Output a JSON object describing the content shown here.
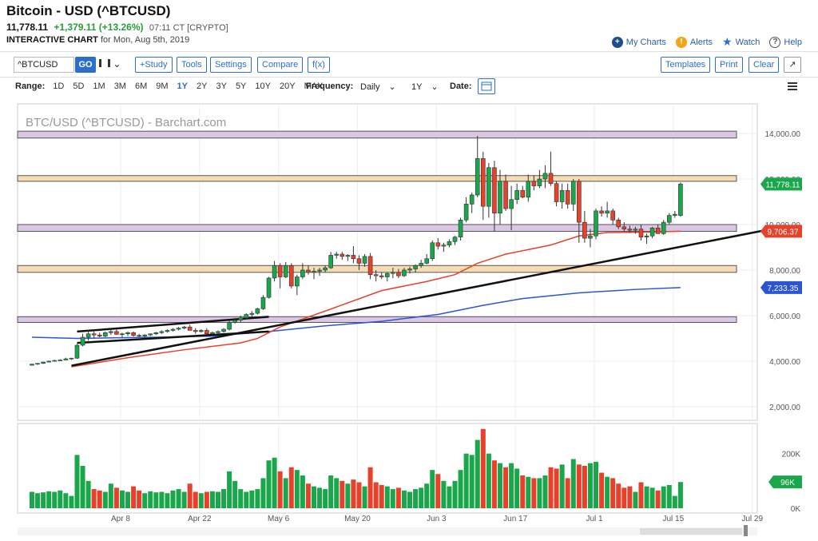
{
  "header": {
    "title": "Bitcoin - USD (^BTCUSD)",
    "last": "11,778.11",
    "change": "+1,379.11 (+13.26%)",
    "time": "07:11 CT [CRYPTO]",
    "chart_kind": "INTERACTIVE CHART",
    "date_text": "for Mon, Aug 5th, 2019"
  },
  "links": {
    "my_charts": "My Charts",
    "alerts": "Alerts",
    "watch": "Watch",
    "help": "Help"
  },
  "toolbar": {
    "symbol": "^BTCUSD",
    "go": "GO",
    "study": "+Study",
    "tools": "Tools",
    "settings": "Settings",
    "compare": "Compare",
    "fx": "f(x)",
    "templates": "Templates",
    "print": "Print",
    "clear": "Clear",
    "expand": "↗"
  },
  "range": {
    "label": "Range:",
    "options": [
      "1D",
      "5D",
      "1M",
      "3M",
      "6M",
      "9M",
      "1Y",
      "2Y",
      "3Y",
      "5Y",
      "10Y",
      "20Y",
      "MAX"
    ],
    "active": "1Y",
    "frequency_label": "Frequency:",
    "frequency_value": "Daily",
    "period_value": "1Y",
    "date_label": "Date:"
  },
  "chart_data": {
    "type": "candlestick",
    "title": "BTC/USD (^BTCUSD) - Barchart.com",
    "price_axis": {
      "ticks": [
        2000,
        4000,
        6000,
        8000,
        10000,
        12000,
        14000
      ],
      "tick_labels": [
        "2,000.00",
        "4,000.00",
        "6,000.00",
        "8,000.00",
        "10,000.00",
        "12,000.00",
        "14,000.00"
      ],
      "range": [
        1400,
        15300
      ]
    },
    "volume_axis": {
      "tick_labels": [
        "200K",
        "0K"
      ],
      "ticks": [
        200000,
        0
      ],
      "range": [
        0,
        310000
      ]
    },
    "x_labels": [
      "Apr 8",
      "Apr 22",
      "May 6",
      "May 20",
      "Jun 3",
      "Jun 17",
      "Jul 1",
      "Jul 15",
      "Jul 29"
    ],
    "x_label_index": [
      4,
      18,
      32,
      46,
      60,
      74,
      88,
      102,
      116
    ],
    "badges": {
      "last_price": "11,778.11",
      "ma_fast": "9,706.37",
      "ma_slow": "7,233.35",
      "volume": "96K"
    },
    "colors": {
      "up": "#1aa64a",
      "down": "#e8412b",
      "ma_fast": "#e8412b",
      "ma_slow": "#2b55d6",
      "support_band_purple": "#dcc6e6",
      "support_band_orange": "#f5dcb3",
      "trendline": "#111111"
    },
    "zones": [
      {
        "low": 13800,
        "high": 14100,
        "color": "purple"
      },
      {
        "low": 11900,
        "high": 12150,
        "color": "orange"
      },
      {
        "low": 9700,
        "high": 10000,
        "color": "purple"
      },
      {
        "low": 7900,
        "high": 8200,
        "color": "orange"
      },
      {
        "low": 5700,
        "high": 5950,
        "color": "purple"
      }
    ],
    "trendlines": [
      {
        "from": [
          -5,
          3800
        ],
        "to": [
          118,
          9750
        ]
      },
      {
        "from": [
          -4,
          5300
        ],
        "to": [
          30,
          5950
        ]
      },
      {
        "from": [
          -4,
          4800
        ],
        "to": [
          30,
          5300
        ]
      }
    ],
    "candles": [
      [
        -12,
        3820,
        3880,
        3800,
        3870,
        60000
      ],
      [
        -11,
        3870,
        3920,
        3840,
        3900,
        55000
      ],
      [
        -10,
        3900,
        3980,
        3880,
        3960,
        58000
      ],
      [
        -9,
        3960,
        4020,
        3940,
        4000,
        62000
      ],
      [
        -8,
        4000,
        4060,
        3980,
        4030,
        60000
      ],
      [
        -7,
        4030,
        4080,
        4010,
        4050,
        65000
      ],
      [
        -6,
        4050,
        4150,
        4040,
        4100,
        55000
      ],
      [
        -5,
        4100,
        4150,
        4060,
        4130,
        45000
      ],
      [
        -4,
        4130,
        4750,
        4100,
        4700,
        195000
      ],
      [
        -3,
        4700,
        5200,
        4650,
        5050,
        155000
      ],
      [
        -2,
        5050,
        5350,
        4900,
        5200,
        100000
      ],
      [
        -1,
        5200,
        5300,
        5000,
        5150,
        70000
      ],
      [
        0,
        5150,
        5250,
        5050,
        5100,
        65000
      ],
      [
        1,
        5100,
        5300,
        5050,
        5250,
        60000
      ],
      [
        2,
        5250,
        5400,
        5150,
        5300,
        90000
      ],
      [
        3,
        5300,
        5400,
        5150,
        5180,
        75000
      ],
      [
        4,
        5180,
        5250,
        5050,
        5200,
        65000
      ],
      [
        5,
        5200,
        5300,
        5100,
        5250,
        60000
      ],
      [
        6,
        5250,
        5300,
        5080,
        5130,
        80000
      ],
      [
        7,
        5130,
        5200,
        5050,
        5100,
        65000
      ],
      [
        8,
        5100,
        5180,
        5030,
        5150,
        55000
      ],
      [
        9,
        5150,
        5220,
        5100,
        5200,
        62000
      ],
      [
        10,
        5200,
        5280,
        5150,
        5250,
        58000
      ],
      [
        11,
        5250,
        5350,
        5200,
        5300,
        60000
      ],
      [
        12,
        5300,
        5400,
        5250,
        5350,
        55000
      ],
      [
        13,
        5350,
        5450,
        5300,
        5400,
        65000
      ],
      [
        14,
        5400,
        5500,
        5350,
        5450,
        70000
      ],
      [
        15,
        5450,
        5550,
        5400,
        5500,
        60000
      ],
      [
        16,
        5500,
        5600,
        5450,
        5350,
        90000
      ],
      [
        17,
        5350,
        5450,
        5200,
        5300,
        60000
      ],
      [
        18,
        5300,
        5400,
        5250,
        5350,
        55000
      ],
      [
        19,
        5350,
        5450,
        5150,
        5200,
        60000
      ],
      [
        20,
        5200,
        5300,
        5150,
        5250,
        62000
      ],
      [
        21,
        5250,
        5350,
        5200,
        5300,
        60000
      ],
      [
        22,
        5300,
        5450,
        5250,
        5400,
        70000
      ],
      [
        23,
        5400,
        5800,
        5350,
        5700,
        135000
      ],
      [
        24,
        5700,
        5900,
        5650,
        5800,
        100000
      ],
      [
        25,
        5800,
        6000,
        5700,
        5900,
        70000
      ],
      [
        26,
        5900,
        6100,
        5850,
        6050,
        60000
      ],
      [
        27,
        6050,
        6200,
        5950,
        6100,
        65000
      ],
      [
        28,
        6100,
        6350,
        6050,
        6300,
        70000
      ],
      [
        29,
        6300,
        6900,
        6250,
        6800,
        110000
      ],
      [
        30,
        6800,
        7700,
        6750,
        7650,
        175000
      ],
      [
        31,
        7650,
        8400,
        7500,
        8200,
        185000
      ],
      [
        32,
        8200,
        8300,
        7200,
        7700,
        135000
      ],
      [
        33,
        7700,
        8350,
        7650,
        8200,
        110000
      ],
      [
        34,
        8200,
        8300,
        7200,
        7300,
        150000
      ],
      [
        35,
        7300,
        7800,
        6900,
        7700,
        140000
      ],
      [
        36,
        7700,
        8300,
        7600,
        8000,
        120000
      ],
      [
        37,
        8000,
        8200,
        7800,
        7900,
        90000
      ],
      [
        38,
        7900,
        8100,
        7600,
        7950,
        80000
      ],
      [
        39,
        7950,
        8100,
        7750,
        8000,
        75000
      ],
      [
        40,
        8000,
        8200,
        7900,
        8100,
        70000
      ],
      [
        41,
        8100,
        8800,
        8050,
        8650,
        120000
      ],
      [
        42,
        8650,
        8800,
        8500,
        8700,
        110000
      ],
      [
        43,
        8700,
        8800,
        8450,
        8600,
        100000
      ],
      [
        44,
        8600,
        8700,
        8400,
        8650,
        90000
      ],
      [
        45,
        8650,
        9050,
        8300,
        8500,
        105000
      ],
      [
        46,
        8500,
        8650,
        8000,
        8300,
        95000
      ],
      [
        47,
        8300,
        8700,
        8150,
        8600,
        80000
      ],
      [
        48,
        8600,
        8750,
        7600,
        7800,
        150000
      ],
      [
        49,
        7800,
        8000,
        7500,
        7750,
        95000
      ],
      [
        50,
        7750,
        7900,
        7600,
        7700,
        85000
      ],
      [
        51,
        7700,
        7900,
        7500,
        7850,
        80000
      ],
      [
        52,
        7850,
        8100,
        7650,
        7900,
        70000
      ],
      [
        53,
        7900,
        8050,
        7650,
        7750,
        75000
      ],
      [
        54,
        7750,
        8100,
        7700,
        8000,
        65000
      ],
      [
        55,
        8000,
        8150,
        7850,
        8050,
        60000
      ],
      [
        56,
        8050,
        8250,
        7900,
        8200,
        70000
      ],
      [
        57,
        8200,
        8450,
        8100,
        8300,
        75000
      ],
      [
        58,
        8300,
        8700,
        8250,
        8500,
        90000
      ],
      [
        59,
        8500,
        9300,
        8400,
        9200,
        140000
      ],
      [
        60,
        9200,
        9400,
        8900,
        9050,
        125000
      ],
      [
        61,
        9050,
        9200,
        8800,
        9100,
        100000
      ],
      [
        62,
        9100,
        9350,
        9000,
        9250,
        80000
      ],
      [
        63,
        9250,
        9500,
        9100,
        9450,
        100000
      ],
      [
        64,
        9450,
        10300,
        9300,
        10200,
        140000
      ],
      [
        65,
        10200,
        11200,
        10100,
        10900,
        200000
      ],
      [
        66,
        10900,
        11400,
        10500,
        11300,
        195000
      ],
      [
        67,
        11300,
        13900,
        11200,
        12900,
        250000
      ],
      [
        68,
        12900,
        13200,
        10200,
        10800,
        290000
      ],
      [
        69,
        10800,
        12700,
        10300,
        12500,
        200000
      ],
      [
        70,
        12500,
        12800,
        9700,
        10500,
        175000
      ],
      [
        71,
        10500,
        12400,
        10000,
        11900,
        165000
      ],
      [
        72,
        11900,
        12200,
        10600,
        10700,
        150000
      ],
      [
        73,
        10700,
        11700,
        9750,
        11100,
        165000
      ],
      [
        74,
        11100,
        11800,
        10900,
        11500,
        145000
      ],
      [
        75,
        11500,
        11700,
        11150,
        11200,
        120000
      ],
      [
        76,
        11200,
        12200,
        11000,
        11900,
        115000
      ],
      [
        77,
        11900,
        12150,
        11500,
        11700,
        110000
      ],
      [
        78,
        11700,
        12400,
        11600,
        12000,
        110000
      ],
      [
        79,
        12000,
        12600,
        11600,
        12250,
        120000
      ],
      [
        80,
        12250,
        13200,
        11700,
        11800,
        150000
      ],
      [
        81,
        11800,
        11900,
        10800,
        11000,
        145000
      ],
      [
        82,
        11000,
        11800,
        10700,
        11500,
        160000
      ],
      [
        83,
        11500,
        11800,
        10700,
        10900,
        110000
      ],
      [
        84,
        10900,
        12000,
        10600,
        11900,
        180000
      ],
      [
        85,
        11900,
        12000,
        9200,
        10100,
        160000
      ],
      [
        86,
        10100,
        10600,
        9200,
        9400,
        155000
      ],
      [
        87,
        9400,
        9800,
        9000,
        9500,
        165000
      ],
      [
        88,
        9500,
        10700,
        9350,
        10600,
        170000
      ],
      [
        89,
        10600,
        10800,
        10350,
        10500,
        130000
      ],
      [
        90,
        10500,
        11000,
        10300,
        10600,
        115000
      ],
      [
        91,
        10600,
        10700,
        10000,
        10200,
        110000
      ],
      [
        92,
        10200,
        10300,
        9800,
        9900,
        90000
      ],
      [
        93,
        9900,
        10100,
        9700,
        9800,
        75000
      ],
      [
        94,
        9800,
        9950,
        9650,
        9750,
        80000
      ],
      [
        95,
        9750,
        9900,
        9600,
        9800,
        60000
      ],
      [
        96,
        9800,
        10000,
        9300,
        9450,
        95000
      ],
      [
        97,
        9450,
        9600,
        9150,
        9500,
        80000
      ],
      [
        98,
        9500,
        9900,
        9400,
        9850,
        75000
      ],
      [
        99,
        9850,
        10000,
        9700,
        9600,
        65000
      ],
      [
        100,
        9600,
        10200,
        9550,
        10100,
        80000
      ],
      [
        101,
        10100,
        10500,
        10000,
        10400,
        85000
      ],
      [
        102,
        10400,
        10600,
        10300,
        10450,
        45000
      ],
      [
        103,
        10400,
        11850,
        10350,
        11778,
        96000
      ]
    ],
    "ma_fast": [
      [
        -5,
        3750
      ],
      [
        5,
        4150
      ],
      [
        15,
        4500
      ],
      [
        25,
        4800
      ],
      [
        28,
        5000
      ],
      [
        32,
        5500
      ],
      [
        40,
        6200
      ],
      [
        50,
        7100
      ],
      [
        58,
        7500
      ],
      [
        63,
        7800
      ],
      [
        67,
        8300
      ],
      [
        72,
        8700
      ],
      [
        80,
        9100
      ],
      [
        85,
        9500
      ],
      [
        90,
        9650
      ],
      [
        96,
        9660
      ],
      [
        103,
        9706
      ]
    ],
    "ma_slow": [
      [
        -12,
        5050
      ],
      [
        -4,
        5000
      ],
      [
        10,
        5050
      ],
      [
        20,
        5100
      ],
      [
        30,
        5300
      ],
      [
        40,
        5550
      ],
      [
        50,
        5750
      ],
      [
        60,
        6050
      ],
      [
        68,
        6450
      ],
      [
        75,
        6750
      ],
      [
        85,
        7000
      ],
      [
        95,
        7150
      ],
      [
        103,
        7233
      ]
    ]
  }
}
